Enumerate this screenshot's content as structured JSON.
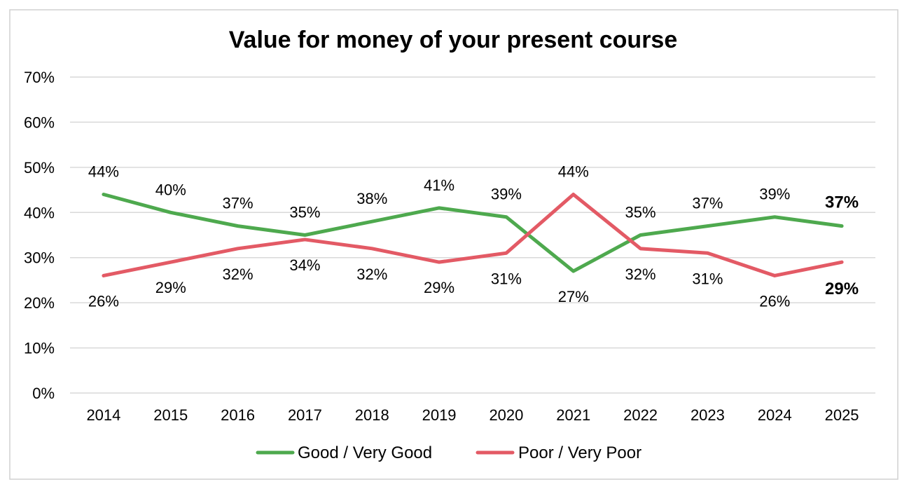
{
  "chart_data": {
    "type": "line",
    "title": "Value for money of your present course",
    "xlabel": "",
    "ylabel": "",
    "categories": [
      "2014",
      "2015",
      "2016",
      "2017",
      "2018",
      "2019",
      "2020",
      "2021",
      "2022",
      "2023",
      "2024",
      "2025"
    ],
    "ylim": [
      0,
      70
    ],
    "yticks": [
      0,
      10,
      20,
      30,
      40,
      50,
      60,
      70
    ],
    "ytick_labels": [
      "0%",
      "10%",
      "20%",
      "30%",
      "40%",
      "50%",
      "60%",
      "70%"
    ],
    "grid": true,
    "legend_position": "bottom",
    "series": [
      {
        "name": "Good / Very Good",
        "color": "#4EA94E",
        "values": [
          44,
          40,
          37,
          35,
          38,
          41,
          39,
          27,
          35,
          37,
          39,
          37
        ],
        "labels": [
          "44%",
          "40%",
          "37%",
          "35%",
          "38%",
          "41%",
          "39%",
          "27%",
          "35%",
          "37%",
          "39%",
          "37%"
        ],
        "label_positions": [
          "above",
          "above",
          "above",
          "above",
          "above",
          "above",
          "above",
          "below",
          "above",
          "above",
          "above",
          "above"
        ]
      },
      {
        "name": "Poor / Very Poor",
        "color": "#E35A65",
        "values": [
          26,
          29,
          32,
          34,
          32,
          29,
          31,
          44,
          32,
          31,
          26,
          29
        ],
        "labels": [
          "26%",
          "29%",
          "32%",
          "34%",
          "32%",
          "29%",
          "31%",
          "44%",
          "32%",
          "31%",
          "26%",
          "29%"
        ],
        "label_positions": [
          "below",
          "below",
          "below",
          "below",
          "below",
          "below",
          "below",
          "above",
          "below",
          "below",
          "below",
          "below"
        ]
      }
    ],
    "emphasized_last_labels": true
  }
}
